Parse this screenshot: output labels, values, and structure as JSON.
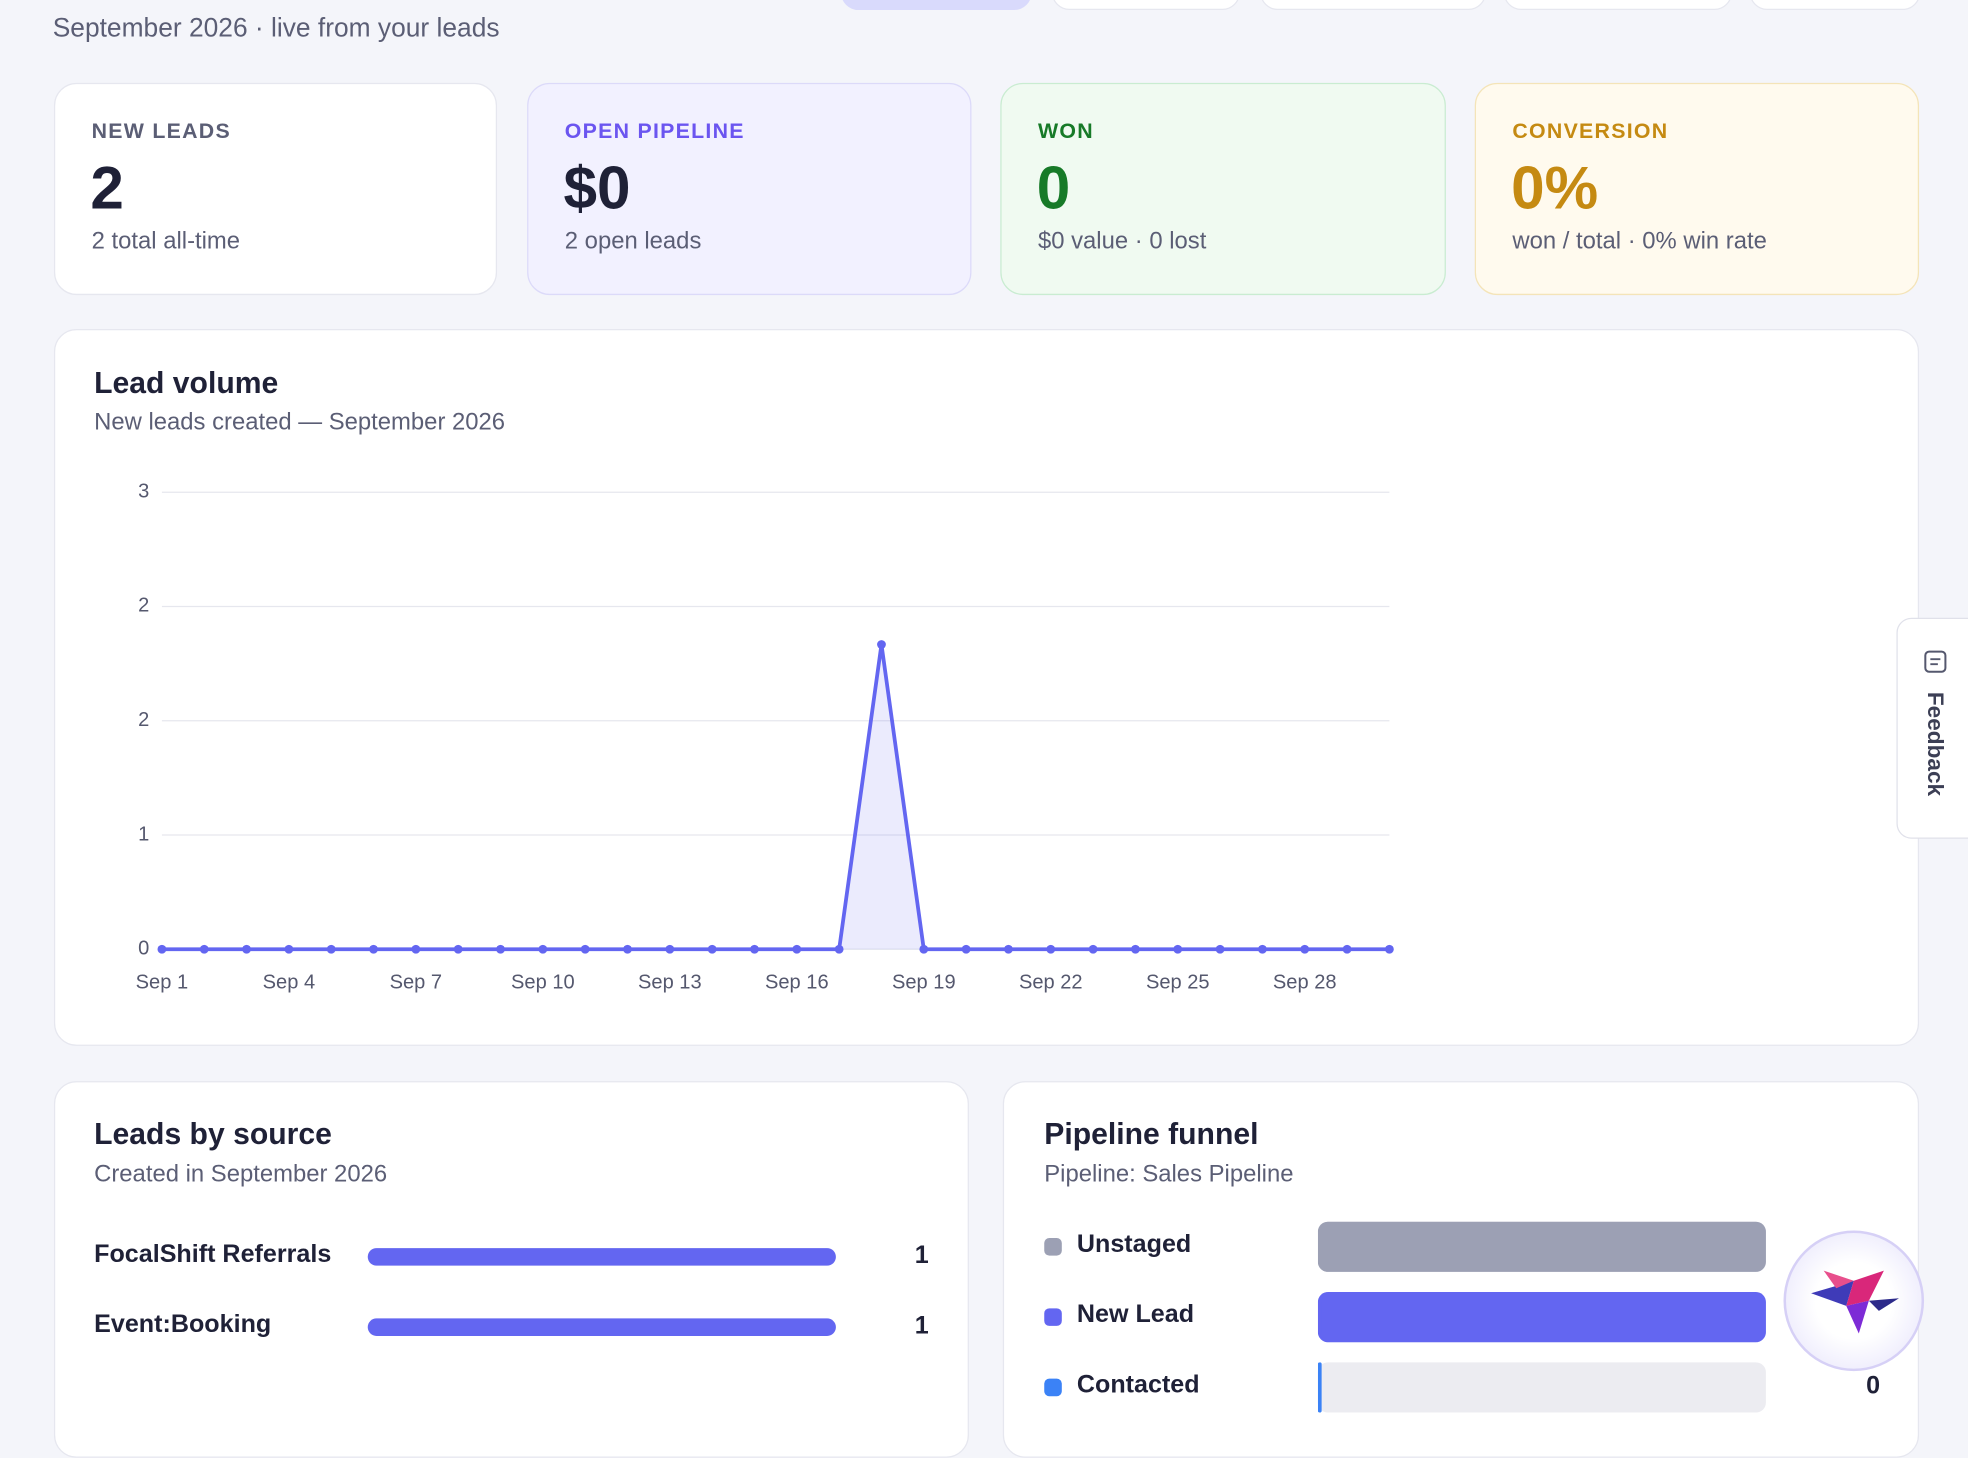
{
  "header": {
    "subtitle": "September 2026 · live from your leads"
  },
  "cards": [
    {
      "label": "NEW LEADS",
      "value": "2",
      "note": "2 total all-time"
    },
    {
      "label": "OPEN PIPELINE",
      "value": "$0",
      "note": "2 open leads"
    },
    {
      "label": "WON",
      "value": "0",
      "note": "$0 value · 0 lost"
    },
    {
      "label": "CONVERSION",
      "value": "0%",
      "note": "won / total · 0% win rate"
    }
  ],
  "chart_data": {
    "type": "line",
    "title": "Lead volume",
    "subtitle": "New leads created — September 2026",
    "categories": [
      "Sep 1",
      null,
      null,
      "Sep 4",
      null,
      null,
      "Sep 7",
      null,
      null,
      "Sep 10",
      null,
      null,
      "Sep 13",
      null,
      null,
      "Sep 16",
      null,
      null,
      "Sep 19",
      null,
      null,
      "Sep 22",
      null,
      null,
      "Sep 25",
      null,
      null,
      "Sep 28",
      null,
      null
    ],
    "values": [
      0,
      0,
      0,
      0,
      0,
      0,
      0,
      0,
      0,
      0,
      0,
      0,
      0,
      0,
      0,
      0,
      0,
      2,
      0,
      0,
      0,
      0,
      0,
      0,
      0,
      0,
      0,
      0,
      0,
      0
    ],
    "color": "#6366f1",
    "ylim": [
      0,
      3
    ],
    "yticks": [
      0,
      {
        "value": 0.75,
        "label": "1"
      },
      {
        "value": 1.5,
        "label": "2"
      },
      {
        "value": 2.25,
        "label": "2"
      },
      3
    ],
    "grid": true
  },
  "sources": {
    "type": "bar",
    "title": "Leads by source",
    "subtitle": "Created in September 2026",
    "categories": [
      "FocalShift Referrals",
      "Event:Booking"
    ],
    "values": [
      1,
      1
    ],
    "color": "#6366f1",
    "xlim": [
      0,
      1
    ]
  },
  "funnel": {
    "type": "bar",
    "title": "Pipeline funnel",
    "subtitle": "Pipeline: Sales Pipeline",
    "categories": [
      "Unstaged",
      "New Lead",
      "Contacted"
    ],
    "values": [
      1,
      1,
      0
    ],
    "colors": [
      "#9ca0b4",
      "#6366f1",
      "#3b82f6"
    ],
    "xlim": [
      0,
      1
    ]
  },
  "feedback": "Feedback"
}
